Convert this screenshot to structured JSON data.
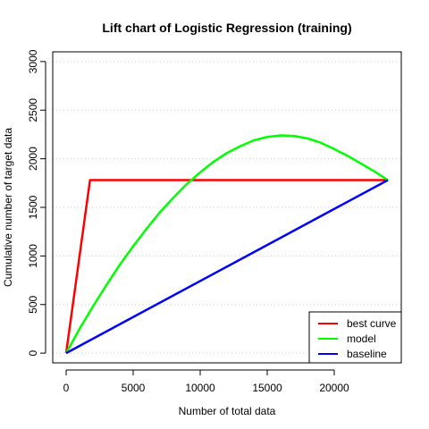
{
  "chart_data": {
    "type": "line",
    "title": "Lift chart of Logistic Regression (training)",
    "xlabel": "Number of total data",
    "ylabel": "Cumulative number of target data",
    "xlim": [
      -1000,
      25000
    ],
    "ylim": [
      -100,
      3100
    ],
    "x_ticks": [
      0,
      5000,
      10000,
      15000,
      20000
    ],
    "y_ticks": [
      0,
      500,
      1000,
      1500,
      2000,
      2500,
      3000
    ],
    "grid": {
      "horizontal": true,
      "style": "dotted"
    },
    "legend_position": "bottom-right",
    "series": [
      {
        "name": "best curve",
        "color": "#ff0000",
        "points": [
          [
            0,
            0
          ],
          [
            1780,
            1780
          ],
          [
            24000,
            1780
          ]
        ]
      },
      {
        "name": "model",
        "color": "#00ff00",
        "points": [
          [
            0,
            0
          ],
          [
            1000,
            250
          ],
          [
            2000,
            480
          ],
          [
            3000,
            700
          ],
          [
            4000,
            910
          ],
          [
            5000,
            1100
          ],
          [
            6000,
            1280
          ],
          [
            7000,
            1450
          ],
          [
            8000,
            1600
          ],
          [
            9000,
            1740
          ],
          [
            10000,
            1860
          ],
          [
            11000,
            1970
          ],
          [
            12000,
            2060
          ],
          [
            13000,
            2130
          ],
          [
            14000,
            2190
          ],
          [
            15000,
            2225
          ],
          [
            16000,
            2240
          ],
          [
            17000,
            2235
          ],
          [
            18000,
            2210
          ],
          [
            19000,
            2165
          ],
          [
            20000,
            2100
          ],
          [
            21000,
            2030
          ],
          [
            22000,
            1950
          ],
          [
            23000,
            1870
          ],
          [
            24000,
            1780
          ]
        ]
      },
      {
        "name": "baseline",
        "color": "#0000ff",
        "points": [
          [
            0,
            0
          ],
          [
            24000,
            1780
          ]
        ]
      }
    ]
  }
}
